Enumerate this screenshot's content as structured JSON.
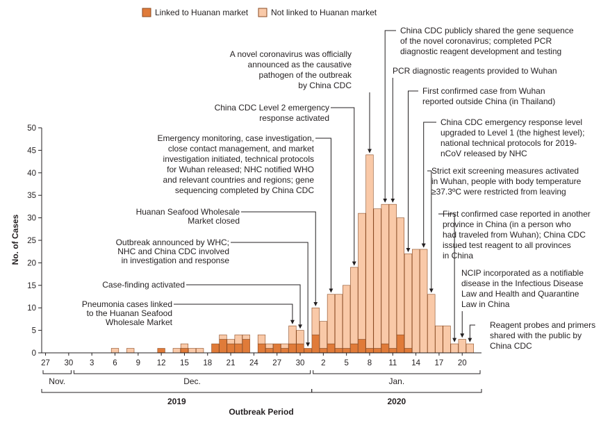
{
  "colors": {
    "linked": "#e07b39",
    "not_linked": "#f9c9a8",
    "bar_stroke": "#8a4a22",
    "axis": "#231f20",
    "annotation_line": "#231f20"
  },
  "legend": {
    "linked_label": "Linked to Huanan market",
    "not_linked_label": "Not linked to Huanan market"
  },
  "chart_data": {
    "type": "bar",
    "stacked": true,
    "ylabel": "No. of Cases",
    "xlabel": "Outbreak Period",
    "ylim": [
      0,
      50
    ],
    "yticks": [
      0,
      5,
      10,
      15,
      20,
      25,
      30,
      35,
      40,
      45,
      50
    ],
    "categories": [
      "Nov 27",
      "Nov 28",
      "Nov 29",
      "Nov 30",
      "Dec 1",
      "Dec 2",
      "Dec 3",
      "Dec 4",
      "Dec 5",
      "Dec 6",
      "Dec 7",
      "Dec 8",
      "Dec 9",
      "Dec 10",
      "Dec 11",
      "Dec 12",
      "Dec 13",
      "Dec 14",
      "Dec 15",
      "Dec 16",
      "Dec 17",
      "Dec 18",
      "Dec 19",
      "Dec 20",
      "Dec 21",
      "Dec 22",
      "Dec 23",
      "Dec 24",
      "Dec 25",
      "Dec 26",
      "Dec 27",
      "Dec 28",
      "Dec 29",
      "Dec 30",
      "Dec 31",
      "Jan 1",
      "Jan 2",
      "Jan 3",
      "Jan 4",
      "Jan 5",
      "Jan 6",
      "Jan 7",
      "Jan 8",
      "Jan 9",
      "Jan 10",
      "Jan 11",
      "Jan 12",
      "Jan 13",
      "Jan 14",
      "Jan 15",
      "Jan 16",
      "Jan 17",
      "Jan 18",
      "Jan 19",
      "Jan 20",
      "Jan 21",
      "Jan 22"
    ],
    "series": [
      {
        "name": "Linked to Huanan market",
        "values": [
          0,
          0,
          0,
          0,
          0,
          0,
          0,
          0,
          0,
          0,
          0,
          0,
          0,
          0,
          0,
          1,
          0,
          0,
          1,
          0,
          0,
          0,
          2,
          3,
          2,
          2,
          3,
          0,
          2,
          1,
          2,
          1,
          2,
          2,
          1,
          4,
          1,
          2,
          1,
          1,
          2,
          3,
          1,
          1,
          2,
          1,
          4,
          1,
          0,
          0,
          0,
          0,
          0,
          0,
          0,
          0,
          0
        ]
      },
      {
        "name": "Not linked to Huanan market",
        "values": [
          0,
          0,
          0,
          0,
          0,
          0,
          0,
          0,
          0,
          1,
          0,
          1,
          0,
          0,
          0,
          0,
          0,
          1,
          1,
          1,
          1,
          0,
          0,
          1,
          1,
          2,
          1,
          0,
          2,
          1,
          0,
          1,
          4,
          3,
          0,
          6,
          6,
          11,
          12,
          14,
          17,
          28,
          43,
          31,
          31,
          32,
          26,
          21,
          23,
          23,
          13,
          6,
          6,
          2,
          3,
          2,
          0
        ]
      }
    ],
    "x_tick_labels": [
      {
        "category": "Nov 27",
        "label": "27"
      },
      {
        "category": "Nov 30",
        "label": "30"
      },
      {
        "category": "Dec 3",
        "label": "3"
      },
      {
        "category": "Dec 6",
        "label": "6"
      },
      {
        "category": "Dec 9",
        "label": "9"
      },
      {
        "category": "Dec 12",
        "label": "12"
      },
      {
        "category": "Dec 15",
        "label": "15"
      },
      {
        "category": "Dec 18",
        "label": "18"
      },
      {
        "category": "Dec 21",
        "label": "21"
      },
      {
        "category": "Dec 24",
        "label": "24"
      },
      {
        "category": "Dec 27",
        "label": "27"
      },
      {
        "category": "Dec 30",
        "label": "30"
      },
      {
        "category": "Jan 2",
        "label": "2"
      },
      {
        "category": "Jan 5",
        "label": "5"
      },
      {
        "category": "Jan 8",
        "label": "8"
      },
      {
        "category": "Jan 11",
        "label": "11"
      },
      {
        "category": "Jan 14",
        "label": "14"
      },
      {
        "category": "Jan 17",
        "label": "17"
      },
      {
        "category": "Jan 20",
        "label": "20"
      }
    ],
    "month_groups": [
      {
        "label": "Nov.",
        "start": "Nov 27",
        "end": "Nov 30"
      },
      {
        "label": "Dec.",
        "start": "Dec 1",
        "end": "Dec 31"
      },
      {
        "label": "Jan.",
        "start": "Jan 1",
        "end": "Jan 22"
      }
    ],
    "year_groups": [
      {
        "label": "2019",
        "start": "Nov 27",
        "end": "Dec 31"
      },
      {
        "label": "2020",
        "start": "Jan 1",
        "end": "Jan 22"
      }
    ],
    "annotations": [
      {
        "id": "pneumonia",
        "target": "Dec 29",
        "lines": [
          "Pneumonia cases linked",
          "to the Huanan Seafood",
          "Wholesale Market"
        ]
      },
      {
        "id": "case-finding",
        "target": "Dec 30",
        "lines": [
          "Case-finding activated"
        ]
      },
      {
        "id": "outbreak-announced",
        "target": "Dec 31",
        "lines": [
          "Outbreak announced by WHC;",
          "NHC and China CDC involved",
          "in investigation and response"
        ]
      },
      {
        "id": "market-closed",
        "target": "Jan 1",
        "lines": [
          "Huanan Seafood Wholesale",
          "Market closed"
        ]
      },
      {
        "id": "emergency-monitoring",
        "target": "Jan 3",
        "lines": [
          "Emergency monitoring, case investigation,",
          "close contact management, and market",
          "investigation initiated, technical protocols",
          "for Wuhan released; NHC notified WHO",
          "and relevant countries and regions; gene",
          "sequencing completed by China CDC"
        ]
      },
      {
        "id": "level2",
        "target": "Jan 6",
        "lines": [
          "China CDC Level 2 emergency",
          "response activated"
        ]
      },
      {
        "id": "pathogen",
        "target": "Jan 8",
        "lines": [
          "A novel coronavirus was officially",
          "announced as the causative",
          "pathogen of the outbreak",
          "by China CDC"
        ]
      },
      {
        "id": "gene-sequence",
        "target": "Jan 10",
        "lines": [
          "China CDC publicly shared the gene sequence",
          "of the novel coronavirus; completed PCR",
          "diagnostic reagent development and testing"
        ]
      },
      {
        "id": "pcr-reagents",
        "target": "Jan 11",
        "lines": [
          "PCR diagnostic reagents provided to Wuhan"
        ]
      },
      {
        "id": "thailand",
        "target": "Jan 13",
        "lines": [
          "First confirmed case from Wuhan",
          "reported outside China (in Thailand)"
        ]
      },
      {
        "id": "level1",
        "target": "Jan 15",
        "lines": [
          "China CDC emergency response level",
          "upgraded to Level 1 (the highest level);",
          "national technical protocols for 2019-",
          "nCoV released by NHC"
        ]
      },
      {
        "id": "exit-screening",
        "target": "Jan 16",
        "lines": [
          "Strict exit screening measures activated",
          "in Wuhan, people with body temperature",
          "≥37.3ºC were restricted from leaving"
        ]
      },
      {
        "id": "another-province",
        "target": "Jan 19",
        "lines": [
          "First confirmed case reported in another",
          "province in China (in a person who",
          "had traveled from Wuhan); China CDC",
          "issued test reagent to all provinces",
          "in China"
        ]
      },
      {
        "id": "ncip",
        "target": "Jan 20",
        "lines": [
          "NCIP incorporated as a notifiable",
          "disease in the Infectious Disease",
          "Law and Health and Quarantine",
          "Law in China"
        ]
      },
      {
        "id": "probes",
        "target": "Jan 21",
        "lines": [
          "Reagent probes and primers",
          "shared with the public by",
          "China CDC"
        ]
      }
    ]
  }
}
